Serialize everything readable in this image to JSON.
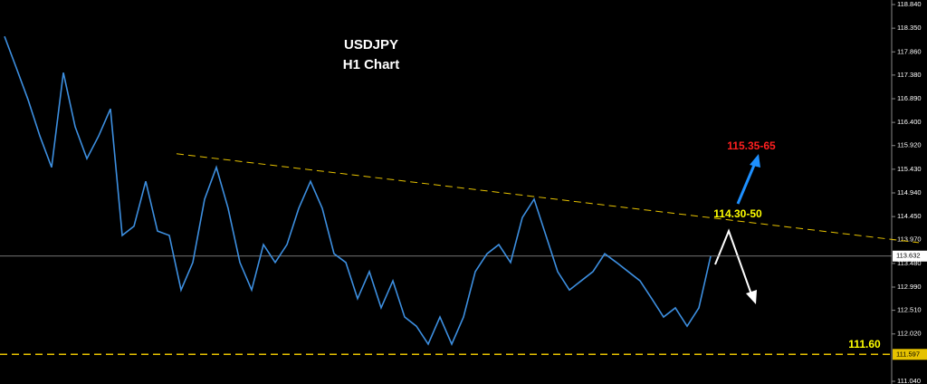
{
  "chart_data": {
    "type": "line",
    "title": "USDJPY",
    "subtitle": "H1 Chart",
    "color": "#3d8fe0",
    "values": [
      118.18,
      117.53,
      116.87,
      116.12,
      115.47,
      117.43,
      116.31,
      115.65,
      116.12,
      116.68,
      114.06,
      114.25,
      115.18,
      114.15,
      114.06,
      112.93,
      113.5,
      114.81,
      115.47,
      114.62,
      113.5,
      112.93,
      113.87,
      113.5,
      113.87,
      114.62,
      115.18,
      114.62,
      113.68,
      113.5,
      112.75,
      113.31,
      112.56,
      113.12,
      112.37,
      112.18,
      111.81,
      112.37,
      111.81,
      112.37,
      113.31,
      113.68,
      113.87,
      113.5,
      114.43,
      114.81,
      114.06,
      113.31,
      112.93,
      113.12,
      113.31,
      113.68,
      113.5,
      113.31,
      113.12,
      112.75,
      112.37,
      112.56,
      112.18,
      112.56,
      113.63
    ],
    "ylim": [
      111.04,
      118.84
    ],
    "yticks": [
      {
        "value": 118.84,
        "label": "118.840"
      },
      {
        "value": 118.35,
        "label": "118.350"
      },
      {
        "value": 117.86,
        "label": "117.860"
      },
      {
        "value": 117.38,
        "label": "117.380"
      },
      {
        "value": 116.89,
        "label": "116.890"
      },
      {
        "value": 116.4,
        "label": "116.400"
      },
      {
        "value": 115.92,
        "label": "115.920"
      },
      {
        "value": 115.43,
        "label": "115.430"
      },
      {
        "value": 114.94,
        "label": "114.940"
      },
      {
        "value": 114.45,
        "label": "114.450"
      },
      {
        "value": 113.97,
        "label": "113.970"
      },
      {
        "value": 113.48,
        "label": "113.480"
      },
      {
        "value": 112.99,
        "label": "112.990"
      },
      {
        "value": 112.51,
        "label": "112.510"
      },
      {
        "value": 112.02,
        "label": "112.020"
      },
      {
        "value": 111.04,
        "label": "111.040"
      }
    ],
    "current_price": 113.632,
    "support": 111.597,
    "trendline": [
      115.75,
      113.91
    ],
    "annotations": [
      "115.35-65",
      "114.30-50",
      "111.60"
    ]
  }
}
